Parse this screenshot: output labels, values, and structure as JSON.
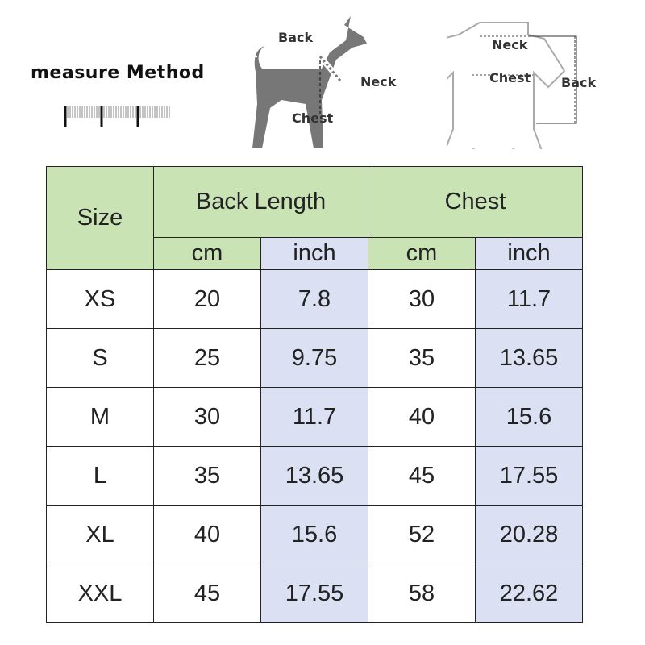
{
  "header": {
    "title": "measure Method",
    "dog_labels": {
      "back": "Back",
      "neck": "Neck",
      "chest": "Chest"
    },
    "shirt_labels": {
      "neck": "Neck",
      "chest": "Chest",
      "back": "Back"
    }
  },
  "colors": {
    "header_bg": "#c9e3b5",
    "inch_bg": "#dbe0f3"
  },
  "table": {
    "size_header": "Size",
    "back_length_header": "Back Length",
    "chest_header": "Chest",
    "units": [
      "cm",
      "inch",
      "cm",
      "inch"
    ],
    "rows": [
      {
        "size": "XS",
        "back_cm": "20",
        "back_inch": "7.8",
        "chest_cm": "30",
        "chest_inch": "11.7"
      },
      {
        "size": "S",
        "back_cm": "25",
        "back_inch": "9.75",
        "chest_cm": "35",
        "chest_inch": "13.65"
      },
      {
        "size": "M",
        "back_cm": "30",
        "back_inch": "11.7",
        "chest_cm": "40",
        "chest_inch": "15.6"
      },
      {
        "size": "L",
        "back_cm": "35",
        "back_inch": "13.65",
        "chest_cm": "45",
        "chest_inch": "17.55"
      },
      {
        "size": "XL",
        "back_cm": "40",
        "back_inch": "15.6",
        "chest_cm": "52",
        "chest_inch": "20.28"
      },
      {
        "size": "XXL",
        "back_cm": "45",
        "back_inch": "17.55",
        "chest_cm": "58",
        "chest_inch": "22.62"
      }
    ]
  }
}
